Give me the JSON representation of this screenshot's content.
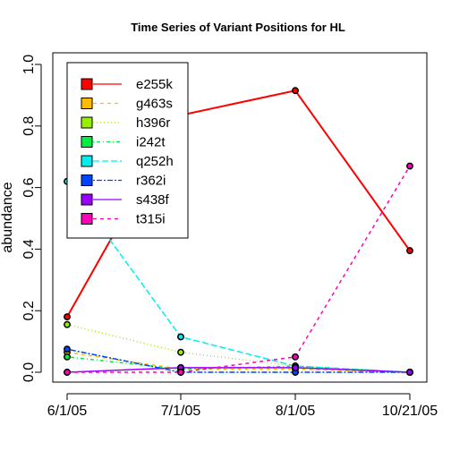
{
  "chart_data": {
    "type": "line",
    "title": "Time Series of Variant Positions for HL",
    "xlabel": "",
    "ylabel": "abundance",
    "categories": [
      "6/1/05",
      "7/1/05",
      "8/1/05",
      "10/21/05"
    ],
    "ylim": [
      0,
      1
    ],
    "yticks": [
      "0.0",
      "0.2",
      "0.4",
      "0.6",
      "0.8",
      "1.0"
    ],
    "legend_position": "top-left",
    "series": [
      {
        "name": "e255k",
        "color": "#ff0000",
        "dash": "solid",
        "values": [
          0.18,
          0.835,
          0.915,
          0.395
        ]
      },
      {
        "name": "g463s",
        "color": "#ffbb00",
        "dash": "dashed",
        "values": [
          0.065,
          0.01,
          0.01,
          0.0
        ]
      },
      {
        "name": "h396r",
        "color": "#99ee00",
        "dash": "dotted",
        "values": [
          0.155,
          0.065,
          0.02,
          0.0
        ]
      },
      {
        "name": "i242t",
        "color": "#00ee44",
        "dash": "dotdash",
        "values": [
          0.05,
          0.01,
          0.02,
          0.0
        ]
      },
      {
        "name": "q252h",
        "color": "#00eeee",
        "dash": "longdash",
        "values": [
          0.62,
          0.115,
          0.02,
          0.0
        ]
      },
      {
        "name": "r362i",
        "color": "#0044ff",
        "dash": "twodash",
        "values": [
          0.075,
          0.0,
          0.0,
          0.0
        ]
      },
      {
        "name": "s438f",
        "color": "#9900ff",
        "dash": "solid",
        "values": [
          0.0,
          0.015,
          0.015,
          0.0
        ]
      },
      {
        "name": "t315i",
        "color": "#ff00bb",
        "dash": "dashed",
        "values": [
          0.0,
          0.0,
          0.05,
          0.67
        ]
      }
    ]
  }
}
